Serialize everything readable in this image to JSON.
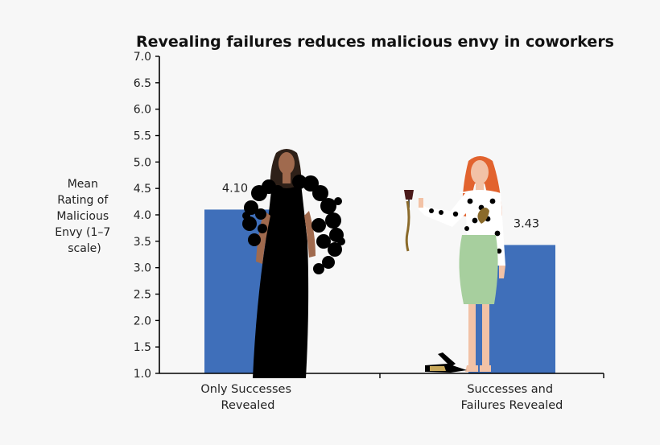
{
  "chart_data": {
    "type": "bar",
    "title": "Revealing failures reduces malicious envy in coworkers",
    "ylabel_lines": [
      "Mean",
      "Rating of",
      "Malicious",
      "Envy (1–7",
      "scale)"
    ],
    "categories": [
      [
        "Only Successes",
        "Revealed"
      ],
      [
        "Successes and",
        "Failures Revealed"
      ]
    ],
    "values": [
      4.1,
      3.43
    ],
    "data_labels": [
      "4.10",
      "3.43"
    ],
    "ylim": [
      1.0,
      7.0
    ],
    "yticks": [
      "1.0",
      "1.5",
      "2.0",
      "2.5",
      "3.0",
      "3.5",
      "4.0",
      "4.5",
      "5.0",
      "5.5",
      "6.0",
      "6.5",
      "7.0"
    ],
    "bar_color": "#3f6fba",
    "grid": false,
    "legend": "none"
  }
}
